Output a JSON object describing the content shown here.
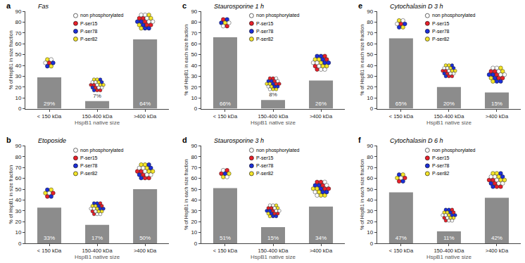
{
  "chart_data": [
    {
      "type": "bar",
      "panel_label": "a",
      "title": "Fas",
      "x_label": "HspB1 native size",
      "y_label": "% of HspB1 in size fraction",
      "categories": [
        "< 150 kDa",
        "150-400 kDa",
        ">400 kDa"
      ],
      "values": [
        29,
        7,
        64
      ],
      "value_labels": [
        "29%",
        "7%",
        "64%"
      ],
      "data_labels": true,
      "color": "#8c8c8c",
      "ylim": [
        0,
        90
      ],
      "yticks": [
        0,
        10,
        20,
        30,
        40,
        50,
        60,
        70,
        80,
        90
      ],
      "annotations": [
        {
          "text": "non phosphorylated",
          "color": "#ffffff"
        },
        {
          "text": "P-ser15",
          "color": "#e8202a"
        },
        {
          "text": "P-ser78",
          "color": "#1c2fd8"
        },
        {
          "text": "P-ser82",
          "color": "#f5e62a"
        }
      ]
    },
    {
      "type": "bar",
      "panel_label": "b",
      "title": "Etoposide",
      "x_label": "HspB1 native size",
      "y_label": "% of HspB1 in size fraction",
      "categories": [
        "< 150 kDa",
        "150-400 kDa",
        ">400 kDa"
      ],
      "values": [
        33,
        17,
        50
      ],
      "value_labels": [
        "33%",
        "17%",
        "50%"
      ],
      "data_labels": true,
      "color": "#8c8c8c",
      "ylim": [
        0,
        90
      ],
      "yticks": [
        0,
        10,
        20,
        30,
        40,
        50,
        60,
        70,
        80,
        90
      ],
      "annotations": [
        {
          "text": "non phosphorylated",
          "color": "#ffffff"
        },
        {
          "text": "P-ser15",
          "color": "#e8202a"
        },
        {
          "text": "P-ser78",
          "color": "#1c2fd8"
        },
        {
          "text": "P-ser82",
          "color": "#f5e62a"
        }
      ]
    },
    {
      "type": "bar",
      "panel_label": "c",
      "title": "Staurosporine 1 h",
      "x_label": "HspB1 native size",
      "y_label": "% of HspB1 in each size fraction",
      "categories": [
        "< 150 kDa",
        "150-400 kDa",
        ">400 kDa"
      ],
      "values": [
        66,
        8,
        26
      ],
      "value_labels": [
        "66%",
        "8%",
        "26%"
      ],
      "data_labels": true,
      "color": "#8c8c8c",
      "ylim": [
        0,
        90
      ],
      "yticks": [
        0,
        10,
        20,
        30,
        40,
        50,
        60,
        70,
        80,
        90
      ],
      "annotations": [
        {
          "text": "non phosphorylated",
          "color": "#ffffff"
        },
        {
          "text": "P-ser15",
          "color": "#e8202a"
        },
        {
          "text": "P-ser78",
          "color": "#1c2fd8"
        },
        {
          "text": "P-ser82",
          "color": "#f5e62a"
        }
      ]
    },
    {
      "type": "bar",
      "panel_label": "d",
      "title": "Staurosporine 3 h",
      "x_label": "HspB1 native size",
      "y_label": "% of HspB1 in each size fraction",
      "categories": [
        "< 150 kDa",
        "150-400 kDa",
        ">400 kDa"
      ],
      "values": [
        51,
        15,
        34
      ],
      "value_labels": [
        "51%",
        "15%",
        "34%"
      ],
      "data_labels": true,
      "color": "#8c8c8c",
      "ylim": [
        0,
        90
      ],
      "yticks": [
        0,
        10,
        20,
        30,
        40,
        50,
        60,
        70,
        80,
        90
      ],
      "annotations": [
        {
          "text": "non phosphorylated",
          "color": "#ffffff"
        },
        {
          "text": "P-ser15",
          "color": "#e8202a"
        },
        {
          "text": "P-ser78",
          "color": "#1c2fd8"
        },
        {
          "text": "P-ser82",
          "color": "#f5e62a"
        }
      ]
    },
    {
      "type": "bar",
      "panel_label": "e",
      "title": "Cytochalasin D 3 h",
      "x_label": "HspB1 native size",
      "y_label": "% of HspB1 in each size fraction",
      "categories": [
        "< 150 kDa",
        "150-400 kDa",
        ">400 kDa"
      ],
      "values": [
        65,
        20,
        15
      ],
      "value_labels": [
        "65%",
        "20%",
        "15%"
      ],
      "data_labels": true,
      "color": "#8c8c8c",
      "ylim": [
        0,
        90
      ],
      "yticks": [
        0,
        10,
        20,
        30,
        40,
        50,
        60,
        70,
        80,
        90
      ],
      "annotations": [
        {
          "text": "non phosphorylated",
          "color": "#ffffff"
        },
        {
          "text": "P-ser15",
          "color": "#e8202a"
        },
        {
          "text": "P-ser78",
          "color": "#1c2fd8"
        },
        {
          "text": "P-ser82",
          "color": "#f5e62a"
        }
      ]
    },
    {
      "type": "bar",
      "panel_label": "f",
      "title": "Cytochalasin D 6 h",
      "x_label": "HspB1 native size",
      "y_label": "% of HspB1 in each size fraction",
      "categories": [
        "< 150 kDa",
        "150-400 kDa",
        ">400 kDa"
      ],
      "values": [
        47,
        11,
        42
      ],
      "value_labels": [
        "47%",
        "11%",
        "42%"
      ],
      "data_labels": true,
      "color": "#8c8c8c",
      "ylim": [
        0,
        90
      ],
      "yticks": [
        0,
        10,
        20,
        30,
        40,
        50,
        60,
        70,
        80,
        90
      ],
      "annotations": [
        {
          "text": "non phosphorylated",
          "color": "#ffffff"
        },
        {
          "text": "P-ser15",
          "color": "#e8202a"
        },
        {
          "text": "P-ser78",
          "color": "#1c2fd8"
        },
        {
          "text": "P-ser82",
          "color": "#f5e62a"
        }
      ]
    }
  ]
}
